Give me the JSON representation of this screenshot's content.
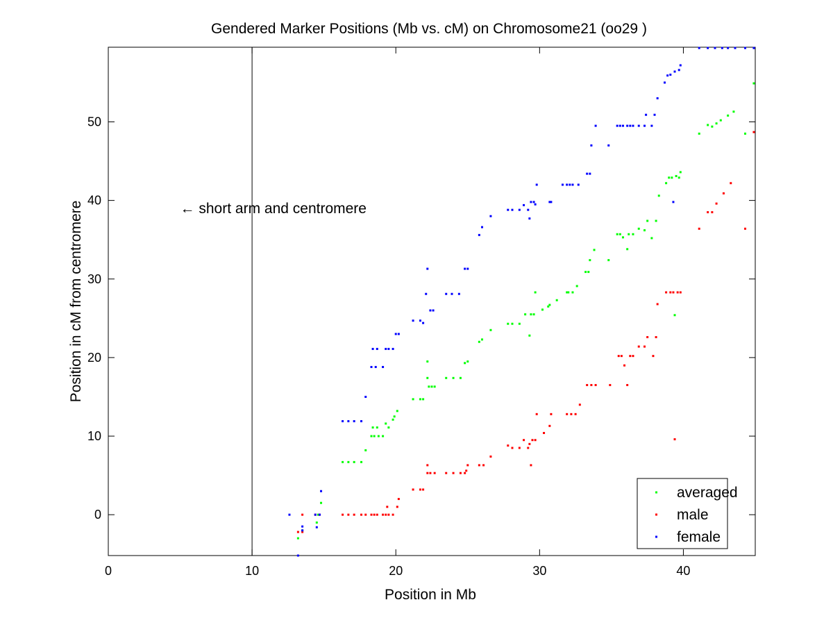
{
  "chart_data": {
    "type": "scatter",
    "title": "Gendered Marker Positions (Mb vs. cM) on Chromosome21 (oo29 )",
    "xlabel": "Position in Mb",
    "ylabel": "Position in cM from centromere",
    "xlim": [
      0,
      45
    ],
    "ylim": [
      -5.2,
      59.5
    ],
    "xticks": [
      0,
      10,
      20,
      30,
      40
    ],
    "yticks": [
      0,
      10,
      20,
      30,
      40,
      50
    ],
    "grid": false,
    "legend_position": "bottom-right",
    "annotation": {
      "text": "← short arm and centromere",
      "x": 5,
      "y": 39
    },
    "vertical_line_x": 10,
    "series": [
      {
        "name": "averaged",
        "color": "#00ff00",
        "points": [
          [
            13.2,
            -3
          ],
          [
            13.5,
            -2
          ],
          [
            14.5,
            -1
          ],
          [
            14.6,
            0
          ],
          [
            14.8,
            1.5
          ],
          [
            16.3,
            6.7
          ],
          [
            16.7,
            6.7
          ],
          [
            17.1,
            6.7
          ],
          [
            17.6,
            6.7
          ],
          [
            17.9,
            8.2
          ],
          [
            18.3,
            10
          ],
          [
            18.4,
            11.1
          ],
          [
            18.5,
            10
          ],
          [
            18.7,
            11.1
          ],
          [
            18.8,
            10
          ],
          [
            19.1,
            10
          ],
          [
            19.3,
            11.6
          ],
          [
            19.5,
            11.1
          ],
          [
            19.8,
            12.1
          ],
          [
            19.9,
            12.5
          ],
          [
            20.1,
            13.2
          ],
          [
            21.2,
            14.7
          ],
          [
            21.7,
            14.7
          ],
          [
            21.9,
            14.7
          ],
          [
            22.2,
            17.4
          ],
          [
            22.2,
            19.5
          ],
          [
            22.3,
            16.3
          ],
          [
            22.5,
            16.3
          ],
          [
            22.7,
            16.3
          ],
          [
            23.5,
            17.4
          ],
          [
            24,
            17.4
          ],
          [
            24.5,
            17.4
          ],
          [
            24.8,
            19.3
          ],
          [
            25,
            19.5
          ],
          [
            25.8,
            22
          ],
          [
            26,
            22.3
          ],
          [
            26.6,
            23.5
          ],
          [
            27.8,
            24.3
          ],
          [
            28.1,
            24.3
          ],
          [
            28.6,
            24.3
          ],
          [
            29,
            25.5
          ],
          [
            29.3,
            22.8
          ],
          [
            29.4,
            25.5
          ],
          [
            29.6,
            25.5
          ],
          [
            29.7,
            28.3
          ],
          [
            30.2,
            26.1
          ],
          [
            30.6,
            26.5
          ],
          [
            30.7,
            26.7
          ],
          [
            31.2,
            27.3
          ],
          [
            31.9,
            28.3
          ],
          [
            32,
            28.3
          ],
          [
            32.3,
            28.3
          ],
          [
            32.6,
            29.1
          ],
          [
            33.2,
            30.9
          ],
          [
            33.4,
            30.9
          ],
          [
            33.5,
            32.4
          ],
          [
            33.8,
            33.7
          ],
          [
            34.8,
            32.4
          ],
          [
            35.4,
            35.7
          ],
          [
            35.6,
            35.7
          ],
          [
            35.8,
            35.3
          ],
          [
            36.1,
            33.8
          ],
          [
            36.2,
            35.7
          ],
          [
            36.5,
            35.7
          ],
          [
            36.9,
            36.4
          ],
          [
            37.3,
            36.2
          ],
          [
            37.5,
            37.4
          ],
          [
            37.8,
            35.2
          ],
          [
            38.1,
            37.4
          ],
          [
            38.3,
            40.6
          ],
          [
            38.8,
            42.2
          ],
          [
            39,
            42.9
          ],
          [
            39.2,
            42.9
          ],
          [
            39.4,
            25.4
          ],
          [
            39.5,
            43.1
          ],
          [
            39.7,
            42.9
          ],
          [
            39.8,
            43.6
          ],
          [
            41.1,
            48.5
          ],
          [
            41.7,
            49.6
          ],
          [
            42,
            49.4
          ],
          [
            42.3,
            49.8
          ],
          [
            42.6,
            50.2
          ],
          [
            43.1,
            50.8
          ],
          [
            43.5,
            51.3
          ],
          [
            44.3,
            48.5
          ],
          [
            44.9,
            54.9
          ]
        ]
      },
      {
        "name": "male",
        "color": "#ff0000",
        "points": [
          [
            13.2,
            -2.2
          ],
          [
            13.5,
            -2.2
          ],
          [
            13.5,
            0
          ],
          [
            14.4,
            0
          ],
          [
            14.7,
            0
          ],
          [
            16.3,
            0
          ],
          [
            16.7,
            0
          ],
          [
            17.1,
            0
          ],
          [
            17.6,
            0
          ],
          [
            17.9,
            0
          ],
          [
            18.3,
            0
          ],
          [
            18.5,
            0
          ],
          [
            18.7,
            0
          ],
          [
            19.1,
            0
          ],
          [
            19.3,
            0
          ],
          [
            19.4,
            1
          ],
          [
            19.5,
            0
          ],
          [
            19.8,
            0
          ],
          [
            20.1,
            1
          ],
          [
            20.2,
            2
          ],
          [
            21.2,
            3.2
          ],
          [
            21.7,
            3.2
          ],
          [
            21.9,
            3.2
          ],
          [
            22.2,
            6.3
          ],
          [
            22.2,
            5.3
          ],
          [
            22.4,
            5.3
          ],
          [
            22.7,
            5.3
          ],
          [
            23.5,
            5.3
          ],
          [
            24,
            5.3
          ],
          [
            24.5,
            5.3
          ],
          [
            24.8,
            5.3
          ],
          [
            24.9,
            5.6
          ],
          [
            25,
            6.3
          ],
          [
            25.8,
            6.3
          ],
          [
            26.1,
            6.3
          ],
          [
            26.6,
            7.4
          ],
          [
            27.8,
            8.8
          ],
          [
            28.1,
            8.5
          ],
          [
            28.6,
            8.5
          ],
          [
            28.9,
            9.5
          ],
          [
            29.2,
            8.5
          ],
          [
            29.3,
            9
          ],
          [
            29.4,
            6.3
          ],
          [
            29.5,
            9.5
          ],
          [
            29.7,
            9.5
          ],
          [
            29.8,
            12.8
          ],
          [
            30.3,
            10.4
          ],
          [
            30.7,
            11.3
          ],
          [
            30.8,
            12.8
          ],
          [
            31.9,
            12.8
          ],
          [
            32.2,
            12.8
          ],
          [
            32.5,
            12.8
          ],
          [
            32.8,
            14
          ],
          [
            33.3,
            16.5
          ],
          [
            33.6,
            16.5
          ],
          [
            33.9,
            16.5
          ],
          [
            34.9,
            16.5
          ],
          [
            35.5,
            20.2
          ],
          [
            35.7,
            20.2
          ],
          [
            35.9,
            19
          ],
          [
            36.1,
            16.5
          ],
          [
            36.3,
            20.2
          ],
          [
            36.5,
            20.2
          ],
          [
            36.9,
            21.4
          ],
          [
            37.3,
            21.4
          ],
          [
            37.5,
            22.6
          ],
          [
            37.9,
            20.2
          ],
          [
            38.1,
            22.6
          ],
          [
            38.2,
            26.8
          ],
          [
            38.8,
            28.3
          ],
          [
            39.1,
            28.3
          ],
          [
            39.3,
            28.3
          ],
          [
            39.4,
            9.6
          ],
          [
            39.6,
            28.3
          ],
          [
            39.8,
            28.3
          ],
          [
            41.1,
            36.4
          ],
          [
            41.7,
            38.5
          ],
          [
            42,
            38.5
          ],
          [
            42.3,
            39.6
          ],
          [
            42.8,
            40.9
          ],
          [
            43.3,
            42.2
          ],
          [
            44.3,
            36.4
          ],
          [
            44.9,
            48.7
          ]
        ]
      },
      {
        "name": "female",
        "color": "#0000ff",
        "points": [
          [
            12.6,
            0
          ],
          [
            13.2,
            -5.2
          ],
          [
            13.5,
            -1.5
          ],
          [
            13.5,
            -2
          ],
          [
            14.4,
            0
          ],
          [
            14.5,
            -1.6
          ],
          [
            14.7,
            0
          ],
          [
            14.8,
            3
          ],
          [
            16.3,
            11.9
          ],
          [
            16.7,
            11.9
          ],
          [
            17.1,
            11.9
          ],
          [
            17.6,
            11.9
          ],
          [
            17.9,
            15
          ],
          [
            18.3,
            18.8
          ],
          [
            18.4,
            21.1
          ],
          [
            18.6,
            18.8
          ],
          [
            18.7,
            21.1
          ],
          [
            19.1,
            18.8
          ],
          [
            19.3,
            21.1
          ],
          [
            19.5,
            21.1
          ],
          [
            19.8,
            21.1
          ],
          [
            20,
            23
          ],
          [
            20.2,
            23
          ],
          [
            21.2,
            24.7
          ],
          [
            21.7,
            24.7
          ],
          [
            21.9,
            24.4
          ],
          [
            22.1,
            28.1
          ],
          [
            22.2,
            31.3
          ],
          [
            22.4,
            26
          ],
          [
            22.6,
            26
          ],
          [
            23.5,
            28.1
          ],
          [
            23.9,
            28.1
          ],
          [
            24.4,
            28.1
          ],
          [
            24.8,
            31.3
          ],
          [
            25,
            31.3
          ],
          [
            25.8,
            35.6
          ],
          [
            26,
            36.6
          ],
          [
            26.6,
            38
          ],
          [
            27.8,
            38.8
          ],
          [
            28.1,
            38.8
          ],
          [
            28.6,
            38.8
          ],
          [
            28.9,
            39.4
          ],
          [
            29.2,
            38.8
          ],
          [
            29.3,
            37.7
          ],
          [
            29.4,
            39.8
          ],
          [
            29.6,
            39.8
          ],
          [
            29.7,
            39.5
          ],
          [
            29.8,
            42
          ],
          [
            30.7,
            39.8
          ],
          [
            30.8,
            39.8
          ],
          [
            31.6,
            42
          ],
          [
            31.9,
            42
          ],
          [
            32.1,
            42
          ],
          [
            32.3,
            42
          ],
          [
            32.7,
            42
          ],
          [
            33.3,
            43.4
          ],
          [
            33.5,
            43.4
          ],
          [
            33.6,
            47
          ],
          [
            33.9,
            49.5
          ],
          [
            34.8,
            47
          ],
          [
            35.4,
            49.5
          ],
          [
            35.6,
            49.5
          ],
          [
            35.8,
            49.5
          ],
          [
            36.1,
            49.5
          ],
          [
            36.3,
            49.5
          ],
          [
            36.5,
            49.5
          ],
          [
            36.9,
            49.5
          ],
          [
            37.3,
            49.5
          ],
          [
            37.4,
            50.9
          ],
          [
            37.8,
            49.5
          ],
          [
            38,
            50.9
          ],
          [
            38.2,
            53
          ],
          [
            38.7,
            55
          ],
          [
            38.9,
            55.9
          ],
          [
            39.1,
            56
          ],
          [
            39.3,
            39.8
          ],
          [
            39.4,
            56.4
          ],
          [
            39.7,
            56.6
          ],
          [
            39.8,
            57.2
          ],
          [
            41.1,
            59.4
          ],
          [
            41.7,
            59.4
          ],
          [
            42.2,
            59.4
          ],
          [
            42.7,
            59.4
          ],
          [
            43.1,
            59.4
          ],
          [
            43.6,
            59.4
          ],
          [
            44.3,
            59.4
          ],
          [
            44.9,
            59.4
          ]
        ]
      }
    ]
  }
}
